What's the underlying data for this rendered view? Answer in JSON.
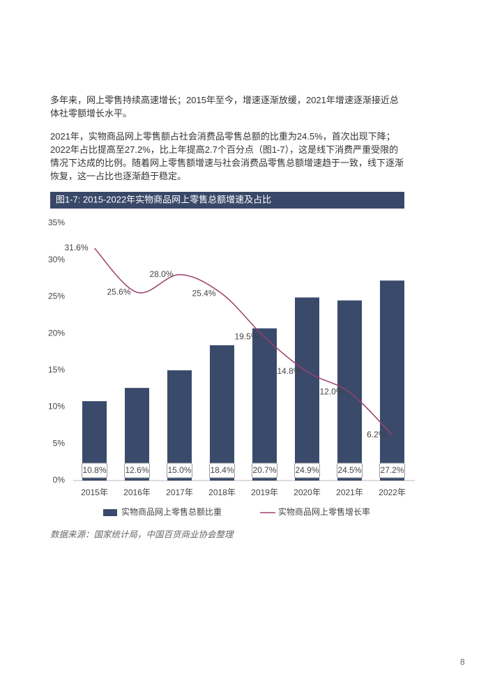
{
  "paragraphs": [
    "多年来，网上零售持续高速增长；2015年至今，增速逐渐放缓，2021年增速逐渐接近总体社零额增长水平。",
    "2021年，实物商品网上零售额占社会消费品零售总额的比重为24.5%，首次出现下降；2022年占比提高至27.2%，比上年提高2.7个百分点（图1-7），这是线下消费严重受限的情况下达成的比例。随着网上零售额增速与社会消费品零售总额增速趋于一致，线下逐渐恢复，这一占比也逐渐趋于稳定。"
  ],
  "chart_data": {
    "type": "combo",
    "title": "图1-7: 2015-2022年实物商品网上零售总额增速及占比",
    "categories": [
      "2015年",
      "2016年",
      "2017年",
      "2018年",
      "2019年",
      "2020年",
      "2021年",
      "2022年"
    ],
    "series": [
      {
        "name": "实物商品网上零售总额比重",
        "type": "bar",
        "color": "#3a4a6b",
        "values": [
          10.8,
          12.6,
          15.0,
          18.4,
          20.7,
          24.9,
          24.5,
          27.2
        ],
        "value_labels": [
          "10.8%",
          "12.6%",
          "15.0%",
          "18.4%",
          "20.7%",
          "24.9%",
          "24.5%",
          "27.2%"
        ]
      },
      {
        "name": "实物商品网上零售增长率",
        "type": "line",
        "color": "#9c3f6c",
        "values": [
          31.6,
          25.6,
          28.0,
          25.4,
          19.5,
          14.8,
          12.0,
          6.2
        ],
        "value_labels": [
          "31.6%",
          "25.6%",
          "28.0%",
          "25.4%",
          "19.5%",
          "14.8%",
          "12.0%",
          "6.2%"
        ]
      }
    ],
    "ylim": [
      0,
      35
    ],
    "yticks": [
      {
        "value": 0,
        "label": "0%"
      },
      {
        "value": 5,
        "label": "5%"
      },
      {
        "value": 10,
        "label": "10%"
      },
      {
        "value": 15,
        "label": "15%"
      },
      {
        "value": 20,
        "label": "20%"
      },
      {
        "value": 25,
        "label": "25%"
      },
      {
        "value": 30,
        "label": "30%"
      },
      {
        "value": 35,
        "label": "35%"
      }
    ],
    "grid": false,
    "legend": "bottom"
  },
  "source": "数据来源：国家统计局，中国百货商业协会整理",
  "page_number": "8"
}
